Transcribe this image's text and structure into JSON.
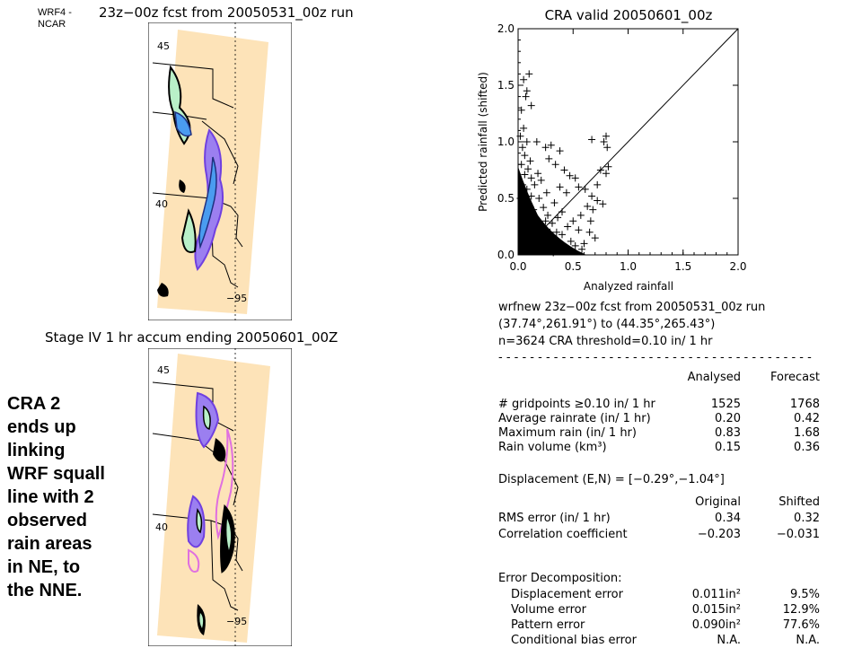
{
  "logo_text": [
    "WRF4 -",
    "NCAR"
  ],
  "top_map": {
    "title": "23z−00z fcst from 20050531_00z run",
    "lat_labels": [
      "45",
      "40"
    ],
    "lon_label": "−95"
  },
  "bottom_map": {
    "title": "Stage IV  1 hr accum ending 20050601_00Z",
    "lat_labels": [
      "45",
      "40"
    ],
    "lon_label": "−95"
  },
  "note": [
    "CRA 2",
    "ends up",
    "linking",
    "WRF squall",
    "line with 2",
    "observed",
    "rain areas",
    "in NE, to",
    "the NNE."
  ],
  "chart_data": {
    "type": "scatter",
    "title": "CRA valid 20050601_00z",
    "xlabel": "Analyzed rainfall",
    "ylabel": "Predicted rainfall (shifted)",
    "xlim": [
      0,
      2
    ],
    "ylim": [
      0,
      2
    ],
    "x_ticks": [
      "0.0",
      "0.5",
      "1.0",
      "1.5",
      "2.0"
    ],
    "y_ticks": [
      "0.0",
      "0.5",
      "1.0",
      "1.5",
      "2.0"
    ],
    "marker": "+",
    "reference_line": "y = x",
    "points": [
      [
        0.05,
        1.55
      ],
      [
        0.1,
        1.6
      ],
      [
        0.07,
        1.4
      ],
      [
        0.03,
        1.28
      ],
      [
        0.05,
        1.12
      ],
      [
        0.08,
        1.45
      ],
      [
        0.12,
        1.32
      ],
      [
        0.17,
        1.0
      ],
      [
        0.25,
        0.95
      ],
      [
        0.3,
        0.97
      ],
      [
        0.38,
        0.92
      ],
      [
        0.28,
        0.85
      ],
      [
        0.34,
        0.8
      ],
      [
        0.42,
        0.75
      ],
      [
        0.47,
        0.7
      ],
      [
        0.52,
        0.68
      ],
      [
        0.38,
        0.6
      ],
      [
        0.44,
        0.55
      ],
      [
        0.55,
        0.6
      ],
      [
        0.61,
        0.58
      ],
      [
        0.67,
        0.52
      ],
      [
        0.72,
        0.48
      ],
      [
        0.77,
        0.45
      ],
      [
        0.63,
        0.43
      ],
      [
        0.68,
        0.4
      ],
      [
        0.57,
        0.35
      ],
      [
        0.5,
        0.3
      ],
      [
        0.45,
        0.25
      ],
      [
        0.55,
        0.22
      ],
      [
        0.4,
        0.18
      ],
      [
        0.65,
        0.2
      ],
      [
        0.7,
        0.15
      ],
      [
        0.6,
        0.1
      ],
      [
        0.36,
        0.12
      ],
      [
        0.67,
        1.02
      ],
      [
        0.78,
        1.0
      ],
      [
        0.8,
        1.05
      ],
      [
        0.81,
        0.95
      ],
      [
        0.75,
        0.75
      ],
      [
        0.8,
        0.72
      ],
      [
        0.82,
        0.78
      ],
      [
        0.72,
        0.62
      ],
      [
        0.66,
        0.3
      ],
      [
        0.58,
        0.05
      ],
      [
        0.02,
        0.5
      ],
      [
        0.04,
        0.62
      ],
      [
        0.06,
        0.71
      ],
      [
        0.08,
        0.58
      ],
      [
        0.1,
        0.45
      ],
      [
        0.12,
        0.52
      ],
      [
        0.14,
        0.4
      ],
      [
        0.16,
        0.33
      ],
      [
        0.18,
        0.28
      ],
      [
        0.2,
        0.22
      ],
      [
        0.22,
        0.18
      ],
      [
        0.24,
        0.12
      ],
      [
        0.26,
        0.08
      ],
      [
        0.28,
        0.05
      ],
      [
        0.3,
        0.03
      ],
      [
        0.32,
        0.02
      ],
      [
        0.05,
        0.35
      ],
      [
        0.07,
        0.25
      ],
      [
        0.09,
        0.15
      ],
      [
        0.11,
        0.1
      ],
      [
        0.13,
        0.05
      ],
      [
        0.03,
        0.8
      ],
      [
        0.06,
        0.88
      ],
      [
        0.09,
        0.76
      ],
      [
        0.15,
        0.62
      ],
      [
        0.19,
        0.5
      ],
      [
        0.23,
        0.42
      ],
      [
        0.27,
        0.35
      ],
      [
        0.31,
        0.28
      ],
      [
        0.35,
        0.2
      ],
      [
        0.04,
        0.95
      ],
      [
        0.02,
        1.05
      ],
      [
        0.11,
        0.83
      ],
      [
        0.21,
        0.66
      ],
      [
        0.26,
        0.55
      ],
      [
        0.33,
        0.46
      ],
      [
        0.18,
        0.72
      ],
      [
        0.4,
        0.38
      ],
      [
        0.36,
        0.33
      ],
      [
        0.29,
        0.2
      ],
      [
        0.21,
        0.1
      ],
      [
        0.15,
        0.2
      ],
      [
        0.48,
        0.12
      ],
      [
        0.52,
        0.08
      ],
      [
        0.44,
        0.05
      ],
      [
        0.38,
        0.03
      ],
      [
        0.25,
        0.3
      ],
      [
        0.12,
        0.68
      ],
      [
        0.08,
        1.0
      ]
    ]
  },
  "stats": {
    "header": [
      "wrfnew 23z−00z fcst from 20050531_00z run",
      "(37.74°,261.91°) to (44.35°,265.43°)",
      "n=3624    CRA threshold=0.10 in/ 1 hr"
    ],
    "divider": "- - - - - - - - - - - - - - - - - - - - - - - - - - - - - - - - - - - - - - - -",
    "col_headers": [
      "Analysed",
      "Forecast"
    ],
    "rows": [
      {
        "label": "# gridpoints ≥0.10 in/ 1 hr",
        "a": "1525",
        "b": "1768"
      },
      {
        "label": "Average rainrate (in/ 1 hr)",
        "a": "0.20",
        "b": "0.42"
      },
      {
        "label": "Maximum rain (in/ 1 hr)",
        "a": "0.83",
        "b": "1.68"
      },
      {
        "label": "Rain volume (km³)",
        "a": "0.15",
        "b": "0.36"
      }
    ],
    "displacement": "Displacement (E,N) = [−0.29°,−1.04°]",
    "col_headers2": [
      "Original",
      "Shifted"
    ],
    "rows2": [
      {
        "label": "RMS error (in/ 1 hr)",
        "a": "0.34",
        "b": "0.32"
      },
      {
        "label": "Correlation coefficient",
        "a": "−0.203",
        "b": "−0.031"
      }
    ],
    "decomp_title": "Error Decomposition:",
    "rows3": [
      {
        "label": "Displacement error",
        "a": "0.011in²",
        "b": "9.5%"
      },
      {
        "label": "Volume error",
        "a": "0.015in²",
        "b": "12.9%"
      },
      {
        "label": "Pattern error",
        "a": "0.090in²",
        "b": "77.6%"
      },
      {
        "label": "Conditional bias error",
        "a": "N.A.",
        "b": "N.A."
      }
    ]
  }
}
